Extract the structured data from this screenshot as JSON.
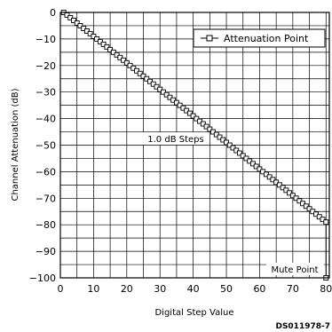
{
  "chart_data": {
    "type": "line",
    "xlabel": "Digital Step Value",
    "ylabel": "Channel Attenuation (dB)",
    "xlim": [
      0,
      81
    ],
    "ylim": [
      -100,
      0
    ],
    "xticks": [
      "0",
      "10",
      "20",
      "30",
      "40",
      "50",
      "60",
      "70",
      "80"
    ],
    "yticks": [
      "0",
      "−10",
      "−20",
      "−30",
      "−40",
      "−50",
      "−60",
      "−70",
      "−80",
      "−90",
      "−100"
    ],
    "grid": true,
    "legend_position": "top-right",
    "series": [
      {
        "name": "Attenuation Point",
        "marker": "square",
        "x": [
          1,
          2,
          3,
          4,
          5,
          6,
          7,
          8,
          9,
          10,
          11,
          12,
          13,
          14,
          15,
          16,
          17,
          18,
          19,
          20,
          21,
          22,
          23,
          24,
          25,
          26,
          27,
          28,
          29,
          30,
          31,
          32,
          33,
          34,
          35,
          36,
          37,
          38,
          39,
          40,
          41,
          42,
          43,
          44,
          45,
          46,
          47,
          48,
          49,
          50,
          51,
          52,
          53,
          54,
          55,
          56,
          57,
          58,
          59,
          60,
          61,
          62,
          63,
          64,
          65,
          66,
          67,
          68,
          69,
          70,
          71,
          72,
          73,
          74,
          75,
          76,
          77,
          78,
          79,
          80,
          80
        ],
        "y": [
          0,
          -1,
          -2,
          -3,
          -4,
          -5,
          -6,
          -7,
          -8,
          -9,
          -10,
          -11,
          -12,
          -13,
          -14,
          -15,
          -16,
          -17,
          -18,
          -19,
          -20,
          -21,
          -22,
          -23,
          -24,
          -25,
          -26,
          -27,
          -28,
          -29,
          -30,
          -31,
          -32,
          -33,
          -34,
          -35,
          -36,
          -37,
          -38,
          -39,
          -40,
          -41,
          -42,
          -43,
          -44,
          -45,
          -46,
          -47,
          -48,
          -49,
          -50,
          -51,
          -52,
          -53,
          -54,
          -55,
          -56,
          -57,
          -58,
          -59,
          -60,
          -61,
          -62,
          -63,
          -64,
          -65,
          -66,
          -67,
          -68,
          -69,
          -70,
          -71,
          -72,
          -73,
          -74,
          -75,
          -76,
          -77,
          -78,
          -79,
          -100
        ]
      }
    ],
    "annotations": {
      "steps": "1.0 dB Steps",
      "mute": "Mute Point"
    },
    "doc_id": "DS011978-7"
  }
}
